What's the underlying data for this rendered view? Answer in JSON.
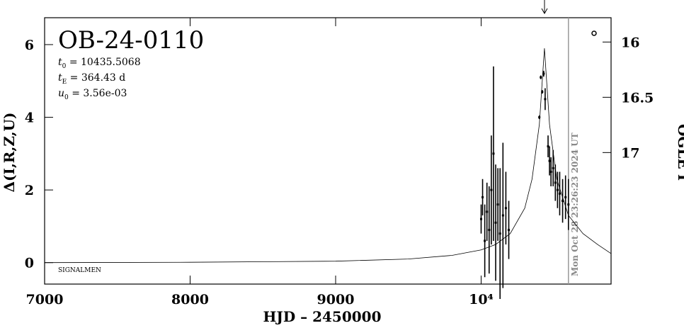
{
  "chart_data": {
    "type": "lightcurve",
    "title": "OB-24-0110",
    "params": [
      {
        "symbol": "t",
        "sub": "0",
        "text": " = 10435.5068"
      },
      {
        "symbol": "t",
        "sub": "E",
        "text": " = 364.43 d"
      },
      {
        "symbol": "u",
        "sub": "0",
        "text": " = 3.56e-03"
      }
    ],
    "annotation": "SIGNALMEN",
    "timestamp": "Mon Oct 28 23:26:23 2024 UT",
    "xlabel": "HJD – 2450000",
    "ylabel": "Δ(I,R,Z,U)",
    "y2label": "OGLE I",
    "xlim": [
      7000,
      10893
    ],
    "ylim": [
      -0.59,
      6.74
    ],
    "y2lim": [
      18.19,
      15.78
    ],
    "xticks": [
      7000,
      8000,
      9000,
      {
        "value": 10000,
        "label": "10⁴"
      }
    ],
    "yticks": [
      0,
      2,
      4,
      6
    ],
    "y2ticks": [
      16,
      16.5,
      17
    ],
    "peak_marker": 10435.5,
    "now_line": 10600,
    "model": {
      "x": [
        7000,
        8000,
        9000,
        9500,
        9800,
        10000,
        10100,
        10200,
        10300,
        10350,
        10400,
        10435,
        10470,
        10520,
        10600,
        10700,
        10800,
        10893
      ],
      "values": [
        0.0,
        0.01,
        0.04,
        0.1,
        0.2,
        0.35,
        0.5,
        0.8,
        1.5,
        2.3,
        3.8,
        5.9,
        3.8,
        2.3,
        1.3,
        0.8,
        0.5,
        0.25
      ]
    },
    "data": {
      "x": [
        10000,
        10010,
        10025,
        10040,
        10055,
        10070,
        10085,
        10100,
        10115,
        10130,
        10150,
        10170,
        10190,
        10400,
        10410,
        10420,
        10430,
        10440,
        10460,
        10470,
        10480,
        10495,
        10510,
        10525,
        10540,
        10560,
        10580,
        10600
      ],
      "values": [
        1.2,
        1.8,
        0.6,
        1.4,
        0.9,
        2.0,
        3.0,
        1.1,
        1.6,
        0.8,
        1.3,
        1.5,
        0.9,
        4.0,
        5.1,
        4.7,
        5.2,
        4.5,
        3.2,
        2.8,
        2.5,
        2.6,
        2.2,
        2.0,
        1.9,
        1.7,
        1.8,
        1.6
      ],
      "errors": [
        0.4,
        0.5,
        1.0,
        0.8,
        1.2,
        1.5,
        2.4,
        1.6,
        1.0,
        1.8,
        2.0,
        1.0,
        0.8,
        0.05,
        0.05,
        0.05,
        0.08,
        0.3,
        0.3,
        0.4,
        0.4,
        0.5,
        0.5,
        0.5,
        0.6,
        0.6,
        0.6,
        0.7
      ]
    }
  }
}
